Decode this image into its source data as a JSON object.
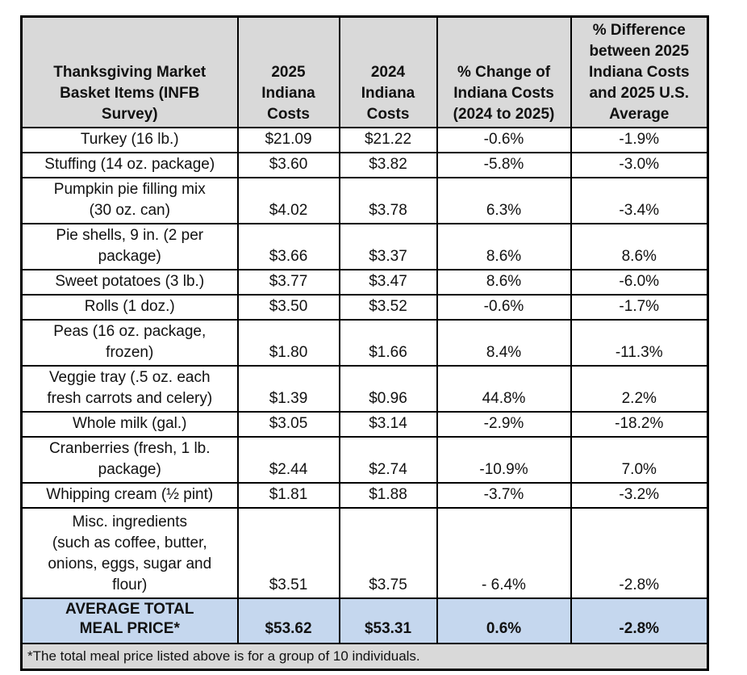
{
  "chart_data": {
    "type": "table",
    "columns": [
      "Thanksgiving Market\nBasket Items (INFB\nSurvey)",
      "2025\nIndiana\nCosts",
      "2024\nIndiana\nCosts",
      "% Change of\nIndiana Costs\n(2024 to 2025)",
      "% Difference\nbetween 2025\nIndiana Costs\nand 2025 U.S.\nAverage"
    ],
    "rows": [
      [
        "Turkey (16 lb.)",
        "$21.09",
        "$21.22",
        "-0.6%",
        "-1.9%"
      ],
      [
        "Stuffing (14 oz. package)",
        "$3.60",
        "$3.82",
        "-5.8%",
        "-3.0%"
      ],
      [
        "Pumpkin pie filling mix\n(30 oz. can)",
        "$4.02",
        "$3.78",
        "6.3%",
        "-3.4%"
      ],
      [
        "Pie shells, 9 in. (2 per\npackage)",
        "$3.66",
        "$3.37",
        "8.6%",
        "8.6%"
      ],
      [
        "Sweet potatoes (3 lb.)",
        "$3.77",
        "$3.47",
        "8.6%",
        "-6.0%"
      ],
      [
        "Rolls (1 doz.)",
        "$3.50",
        "$3.52",
        "-0.6%",
        "-1.7%"
      ],
      [
        "Peas (16 oz. package,\nfrozen)",
        "$1.80",
        "$1.66",
        "8.4%",
        "-11.3%"
      ],
      [
        "Veggie tray (.5 oz. each\nfresh carrots and celery)",
        "$1.39",
        "$0.96",
        "44.8%",
        "2.2%"
      ],
      [
        "Whole milk (gal.)",
        "$3.05",
        "$3.14",
        "-2.9%",
        "-18.2%"
      ],
      [
        "Cranberries (fresh, 1 lb.\npackage)",
        "$2.44",
        "$2.74",
        "-10.9%",
        "7.0%"
      ],
      [
        "Whipping cream (½ pint)",
        "$1.81",
        "$1.88",
        "-3.7%",
        "-3.2%"
      ],
      [
        "Misc. ingredients\n(such as coffee, butter,\nonions, eggs, sugar and\nflour)",
        "$3.51",
        "$3.75",
        "- 6.4%",
        "-2.8%"
      ]
    ],
    "total_row": [
      "AVERAGE TOTAL\nMEAL PRICE*",
      "$53.62",
      "$53.31",
      "0.6%",
      "-2.8%"
    ],
    "footnote": "*The total meal price listed above is for a group of 10 individuals."
  },
  "colors": {
    "header_bg": "#d9d9d9",
    "total_bg": "#c5d7ee",
    "footnote_bg": "#d9d9d9",
    "border": "#000000"
  }
}
